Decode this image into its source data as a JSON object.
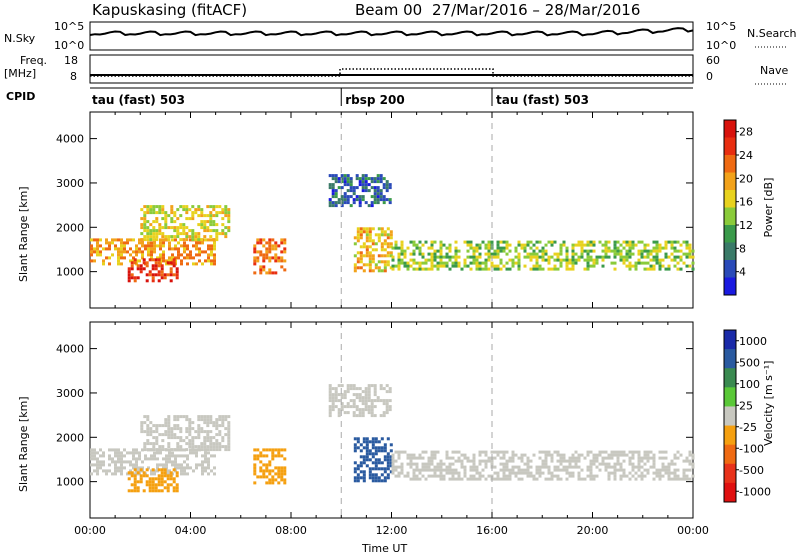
{
  "header": {
    "station": "Kapuskasing (fitACF)",
    "beam": "Beam 00",
    "daterange": "27/Mar/2016 – 28/Mar/2016"
  },
  "top_panels": {
    "nsky_label": "N.Sky",
    "nsky_ticks": [
      "10^5",
      "10^0"
    ],
    "nsearch_ticks": [
      "10^5",
      "10^0"
    ],
    "nsearch_label": "N.Search",
    "freq_label": "Freq.",
    "freq_unit": "[MHz]",
    "freq_ticks": [
      "18",
      "8"
    ],
    "nave_ticks": [
      "60",
      "0"
    ],
    "nave_label": "Nave",
    "cpid_label": "CPID",
    "cpid_segments": [
      {
        "label": "tau (fast) 503",
        "start": 0,
        "end": 10
      },
      {
        "label": "rbsp 200",
        "start": 10,
        "end": 16
      },
      {
        "label": "tau (fast) 503",
        "start": 16,
        "end": 24
      }
    ]
  },
  "colors": {
    "power_scale": [
      "#1a1ae0",
      "#2a4ab8",
      "#3a7a68",
      "#3a9a4a",
      "#8acb3a",
      "#e8d21e",
      "#f2a21a",
      "#ef6a12",
      "#e82e10",
      "#d8120c"
    ],
    "velocity_scale": [
      "#1a2aa8",
      "#2a5aa0",
      "#3a8a50",
      "#5ac838",
      "#c8c8c0",
      "#f5a010",
      "#ef6a12",
      "#e8321a",
      "#e01010"
    ],
    "ground_scatter": "#c8c8c0"
  },
  "chart_data": [
    {
      "type": "heatmap",
      "title": "",
      "xlabel": "Time UT",
      "ylabel": "Slant Range [km]",
      "xlim": [
        0,
        24
      ],
      "ylim": [
        180,
        4600
      ],
      "x_ticks": [
        "00:00",
        "04:00",
        "08:00",
        "12:00",
        "16:00",
        "20:00",
        "00:00"
      ],
      "y_ticks": [
        "1000",
        "2000",
        "3000",
        "4000"
      ],
      "colorbar_label": "Power [dB]",
      "colorbar_ticks": [
        "4",
        "8",
        "12",
        "16",
        "20",
        "24",
        "28"
      ],
      "colorbar_range": [
        0,
        30
      ],
      "regions": [
        {
          "t0": 0.0,
          "t1": 5.0,
          "r0": 1200,
          "r1": 1750,
          "value": 20
        },
        {
          "t0": 1.5,
          "t1": 3.5,
          "r0": 800,
          "r1": 1300,
          "value": 26
        },
        {
          "t0": 2.0,
          "t1": 5.5,
          "r0": 1700,
          "r1": 2500,
          "value": 16
        },
        {
          "t0": 6.5,
          "t1": 7.8,
          "r0": 1000,
          "r1": 1750,
          "value": 22
        },
        {
          "t0": 10.5,
          "t1": 12.0,
          "r0": 1000,
          "r1": 2000,
          "value": 18
        },
        {
          "t0": 12.0,
          "t1": 24.0,
          "r0": 1050,
          "r1": 1700,
          "value": 14
        },
        {
          "t0": 9.5,
          "t1": 12.0,
          "r0": 2500,
          "r1": 3200,
          "value": 6
        }
      ]
    },
    {
      "type": "heatmap",
      "title": "",
      "xlabel": "Time UT",
      "ylabel": "Slant Range [km]",
      "xlim": [
        0,
        24
      ],
      "ylim": [
        180,
        4600
      ],
      "x_ticks": [
        "00:00",
        "04:00",
        "08:00",
        "12:00",
        "16:00",
        "20:00",
        "00:00"
      ],
      "y_ticks": [
        "1000",
        "2000",
        "3000",
        "4000"
      ],
      "colorbar_label": "Velocity [m s⁻¹]",
      "colorbar_ticks": [
        "1000",
        "500",
        "100",
        "25",
        "-25",
        "-100",
        "-500",
        "-1000"
      ],
      "colorbar_range": [
        -1000,
        1000
      ],
      "regions": [
        {
          "t0": 0.0,
          "t1": 5.0,
          "r0": 1200,
          "r1": 1750,
          "value": 0
        },
        {
          "t0": 1.5,
          "t1": 3.5,
          "r0": 800,
          "r1": 1300,
          "value": -400
        },
        {
          "t0": 2.0,
          "t1": 5.5,
          "r0": 1700,
          "r1": 2500,
          "value": 0
        },
        {
          "t0": 6.5,
          "t1": 7.8,
          "r0": 1000,
          "r1": 1750,
          "value": -300
        },
        {
          "t0": 10.5,
          "t1": 12.0,
          "r0": 1000,
          "r1": 2000,
          "value": 200
        },
        {
          "t0": 12.0,
          "t1": 24.0,
          "r0": 1050,
          "r1": 1700,
          "value": 0
        },
        {
          "t0": 9.5,
          "t1": 12.0,
          "r0": 2500,
          "r1": 3200,
          "value": 0
        }
      ]
    }
  ]
}
